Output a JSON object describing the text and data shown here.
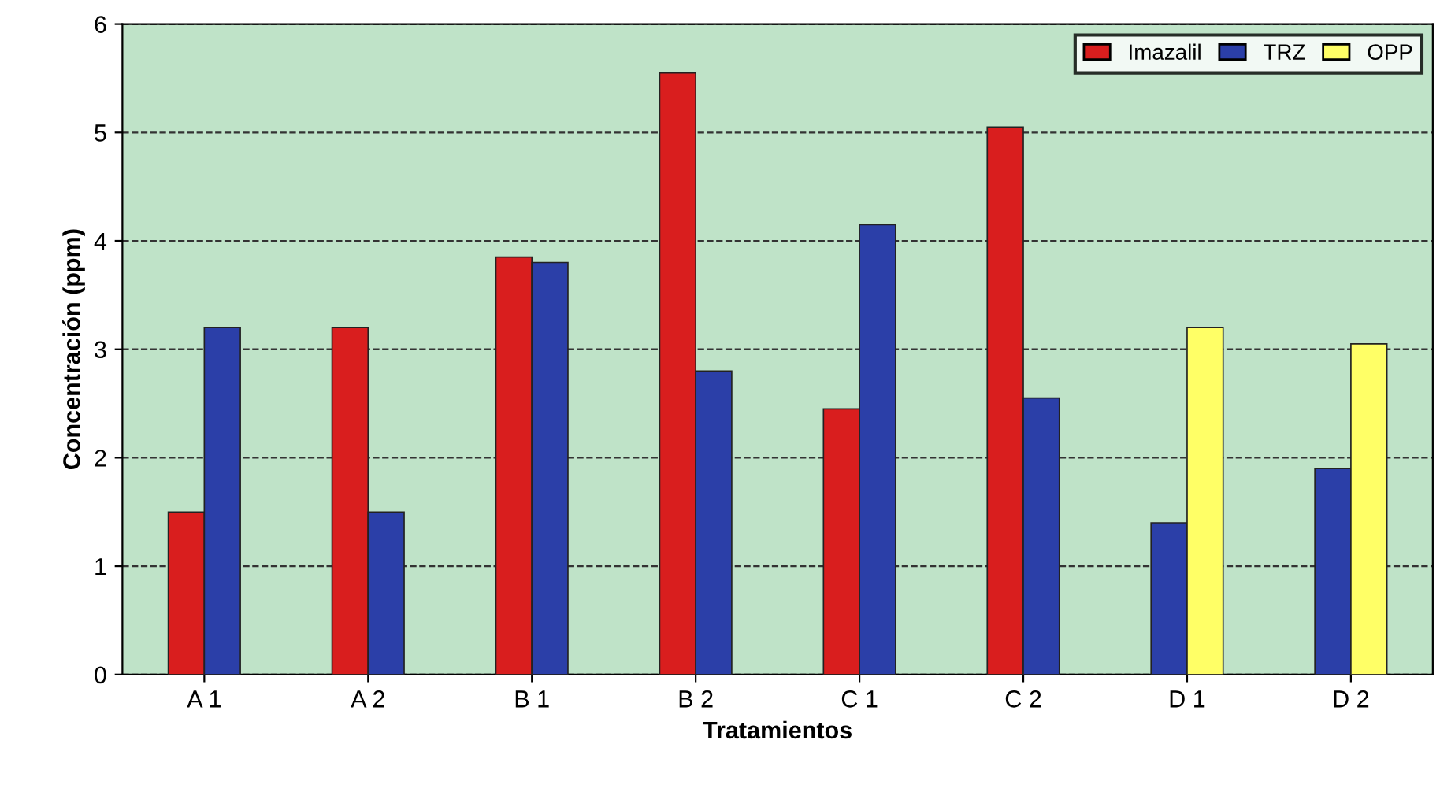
{
  "chart_data": {
    "type": "bar",
    "xlabel": "Tratamientos",
    "ylabel": "Concentración (ppm)",
    "categories": [
      "A 1",
      "A 2",
      "B 1",
      "B 2",
      "C 1",
      "C 2",
      "D 1",
      "D 2"
    ],
    "series": [
      {
        "name": "Imazalil",
        "color": "#d91e1e",
        "values": [
          1.5,
          3.2,
          3.85,
          5.55,
          2.45,
          5.05,
          null,
          null
        ]
      },
      {
        "name": "TRZ",
        "color": "#2b3fa8",
        "values": [
          3.2,
          1.5,
          3.8,
          2.8,
          4.15,
          2.55,
          1.4,
          1.9
        ]
      },
      {
        "name": "OPP",
        "color": "#ffff66",
        "values": [
          null,
          null,
          null,
          null,
          null,
          null,
          3.2,
          3.05
        ]
      }
    ],
    "ylim": [
      0,
      6
    ],
    "yticks": [
      0,
      1,
      2,
      3,
      4,
      5,
      6
    ],
    "grid": "y",
    "legend": "top right"
  }
}
